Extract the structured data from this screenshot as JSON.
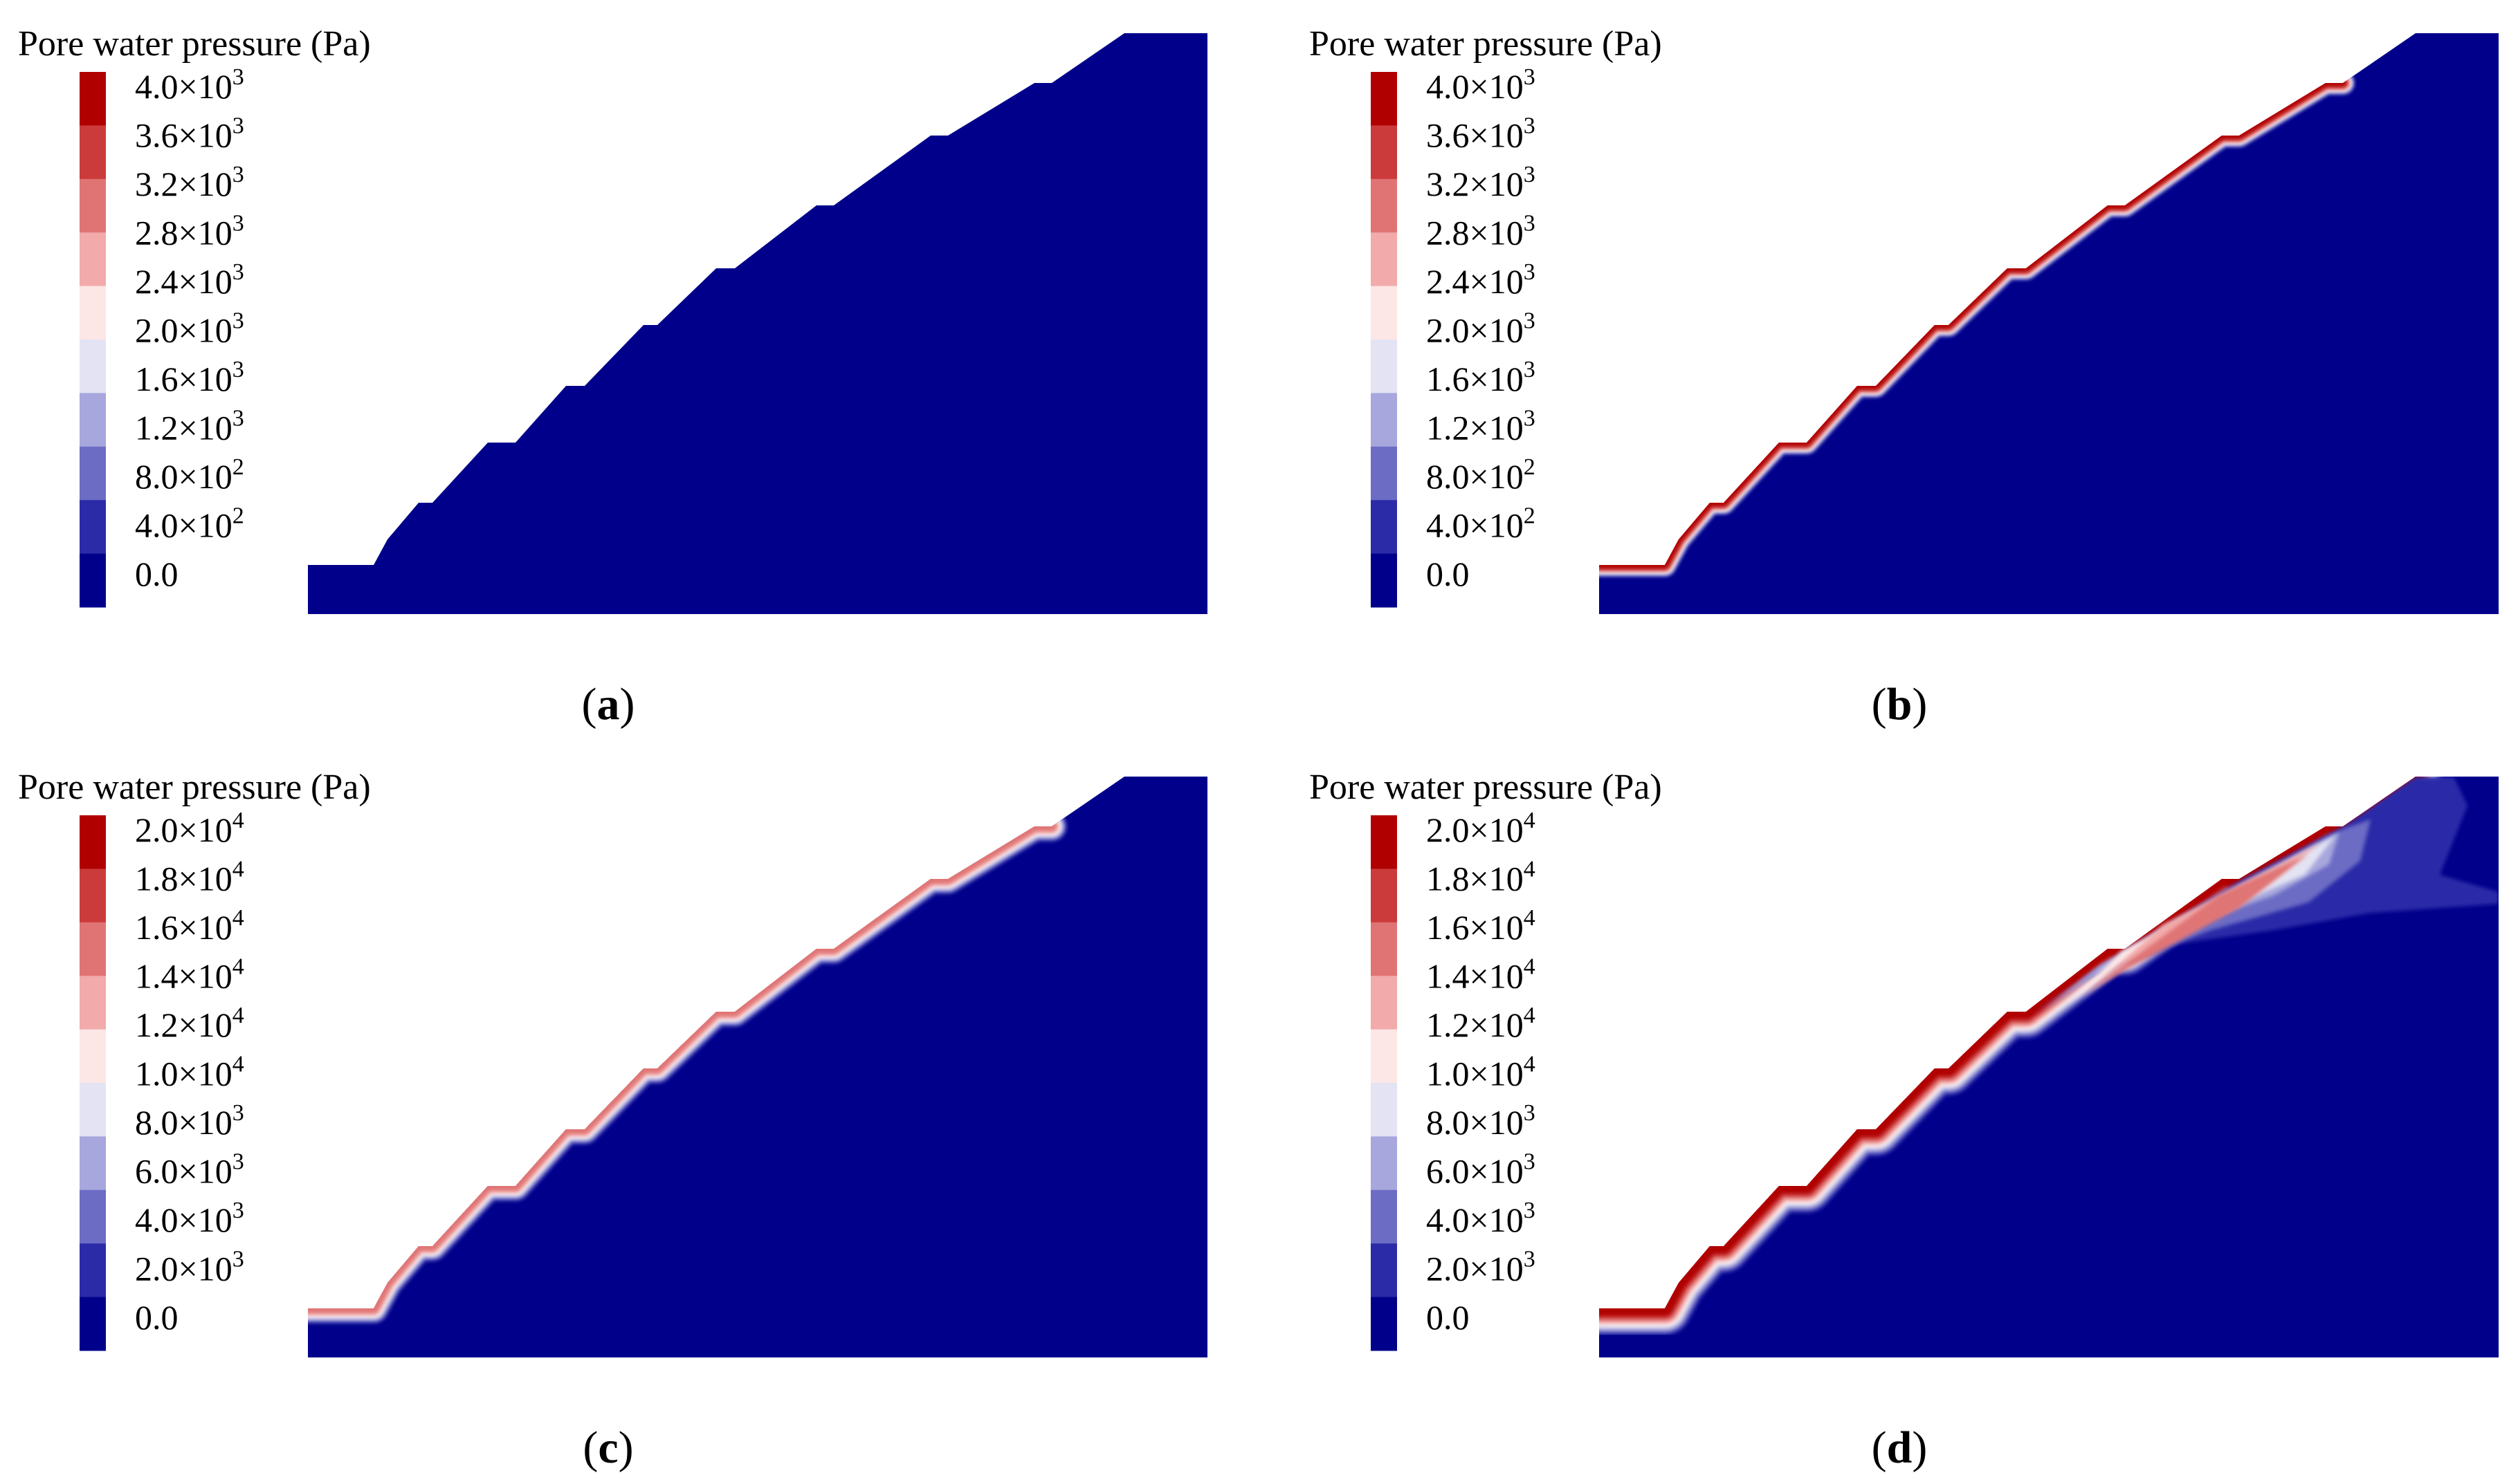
{
  "colors": {
    "scale": [
      "#00008b",
      "#2b2ba8",
      "#6c6cc5",
      "#a7a7dd",
      "#e3e3f3",
      "#fde6e6",
      "#f2aaaa",
      "#e07474",
      "#cb3b3b",
      "#b00000"
    ],
    "soil": "#00008b"
  },
  "chart_data": [
    {
      "type": "heatmap",
      "panel": "a",
      "label_open": "(",
      "label_letter": "a",
      "label_close": ")",
      "title": "Pore water pressure (Pa)",
      "colorbar_labels": [
        {
          "mantissa": "4.0×10",
          "exp": "3",
          "value": 4000
        },
        {
          "mantissa": "3.6×10",
          "exp": "3",
          "value": 3600
        },
        {
          "mantissa": "3.2×10",
          "exp": "3",
          "value": 3200
        },
        {
          "mantissa": "2.8×10",
          "exp": "3",
          "value": 2800
        },
        {
          "mantissa": "2.4×10",
          "exp": "3",
          "value": 2400
        },
        {
          "mantissa": "2.0×10",
          "exp": "3",
          "value": 2000
        },
        {
          "mantissa": "1.6×10",
          "exp": "3",
          "value": 1600
        },
        {
          "mantissa": "1.2×10",
          "exp": "3",
          "value": 1200
        },
        {
          "mantissa": "8.0×10",
          "exp": "2",
          "value": 800
        },
        {
          "mantissa": "4.0×10",
          "exp": "2",
          "value": 400
        },
        {
          "mantissa": "0.0",
          "exp": "",
          "value": 0
        }
      ],
      "range": [
        0,
        4000
      ],
      "surface_max_level": 0,
      "surface_band": 0,
      "plume": 0
    },
    {
      "type": "heatmap",
      "panel": "b",
      "label_open": "(",
      "label_letter": "b",
      "label_close": ")",
      "title": "Pore water pressure (Pa)",
      "colorbar_labels": [
        {
          "mantissa": "4.0×10",
          "exp": "3",
          "value": 4000
        },
        {
          "mantissa": "3.6×10",
          "exp": "3",
          "value": 3600
        },
        {
          "mantissa": "3.2×10",
          "exp": "3",
          "value": 3200
        },
        {
          "mantissa": "2.8×10",
          "exp": "3",
          "value": 2800
        },
        {
          "mantissa": "2.4×10",
          "exp": "3",
          "value": 2400
        },
        {
          "mantissa": "2.0×10",
          "exp": "3",
          "value": 2000
        },
        {
          "mantissa": "1.6×10",
          "exp": "3",
          "value": 1600
        },
        {
          "mantissa": "1.2×10",
          "exp": "3",
          "value": 1200
        },
        {
          "mantissa": "8.0×10",
          "exp": "2",
          "value": 800
        },
        {
          "mantissa": "4.0×10",
          "exp": "2",
          "value": 400
        },
        {
          "mantissa": "0.0",
          "exp": "",
          "value": 0
        }
      ],
      "range": [
        0,
        4000
      ],
      "surface_max_level": 9,
      "surface_band": 1,
      "plume": 0
    },
    {
      "type": "heatmap",
      "panel": "c",
      "label_open": "(",
      "label_letter": "c",
      "label_close": ")",
      "title": "Pore water pressure (Pa)",
      "colorbar_labels": [
        {
          "mantissa": "2.0×10",
          "exp": "4",
          "value": 20000
        },
        {
          "mantissa": "1.8×10",
          "exp": "4",
          "value": 18000
        },
        {
          "mantissa": "1.6×10",
          "exp": "4",
          "value": 16000
        },
        {
          "mantissa": "1.4×10",
          "exp": "4",
          "value": 14000
        },
        {
          "mantissa": "1.2×10",
          "exp": "4",
          "value": 12000
        },
        {
          "mantissa": "1.0×10",
          "exp": "4",
          "value": 10000
        },
        {
          "mantissa": "8.0×10",
          "exp": "3",
          "value": 8000
        },
        {
          "mantissa": "6.0×10",
          "exp": "3",
          "value": 6000
        },
        {
          "mantissa": "4.0×10",
          "exp": "3",
          "value": 4000
        },
        {
          "mantissa": "2.0×10",
          "exp": "3",
          "value": 2000
        },
        {
          "mantissa": "0.0",
          "exp": "",
          "value": 0
        }
      ],
      "range": [
        0,
        20000
      ],
      "surface_max_level": 7,
      "surface_band": 2,
      "plume": 0
    },
    {
      "type": "heatmap",
      "panel": "d",
      "label_open": "(",
      "label_letter": "d",
      "label_close": ")",
      "title": "Pore water pressure (Pa)",
      "colorbar_labels": [
        {
          "mantissa": "2.0×10",
          "exp": "4",
          "value": 20000
        },
        {
          "mantissa": "1.8×10",
          "exp": "4",
          "value": 18000
        },
        {
          "mantissa": "1.6×10",
          "exp": "4",
          "value": 16000
        },
        {
          "mantissa": "1.4×10",
          "exp": "4",
          "value": 14000
        },
        {
          "mantissa": "1.2×10",
          "exp": "4",
          "value": 12000
        },
        {
          "mantissa": "1.0×10",
          "exp": "4",
          "value": 10000
        },
        {
          "mantissa": "8.0×10",
          "exp": "3",
          "value": 8000
        },
        {
          "mantissa": "6.0×10",
          "exp": "3",
          "value": 6000
        },
        {
          "mantissa": "4.0×10",
          "exp": "3",
          "value": 4000
        },
        {
          "mantissa": "2.0×10",
          "exp": "3",
          "value": 2000
        },
        {
          "mantissa": "0.0",
          "exp": "",
          "value": 0
        }
      ],
      "range": [
        0,
        20000
      ],
      "surface_max_level": 9,
      "surface_band": 3,
      "plume": 1
    }
  ]
}
